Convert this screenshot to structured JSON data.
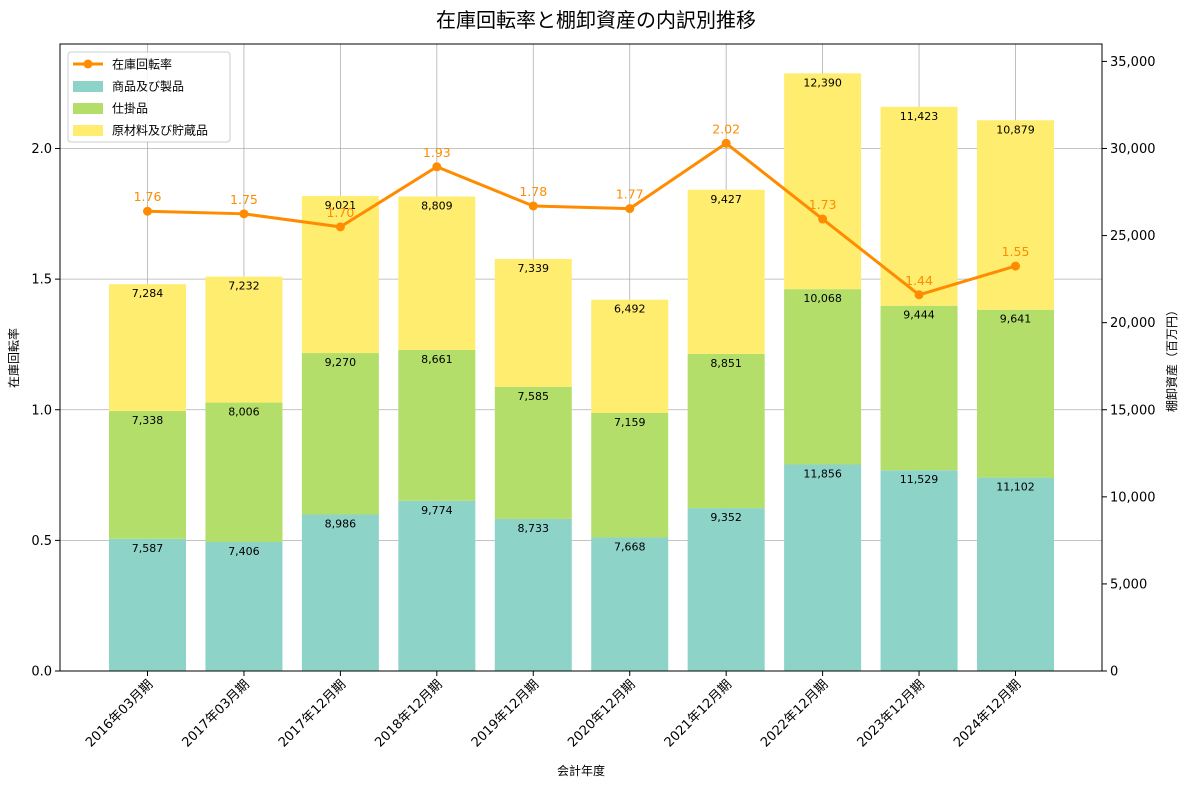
{
  "chart_data": {
    "type": "bar",
    "title": "在庫回転率と棚卸資産の内訳別推移",
    "xlabel": "会計年度",
    "ylabel_left": "在庫回転率",
    "ylabel_right": "棚卸資産（百万円）",
    "categories": [
      "2016年03月期",
      "2017年03月期",
      "2017年12月期",
      "2018年12月期",
      "2019年12月期",
      "2020年12月期",
      "2021年12月期",
      "2022年12月期",
      "2023年12月期",
      "2024年12月期"
    ],
    "series": [
      {
        "name": "商品及び製品",
        "kind": "bar",
        "axis": "right",
        "color": "#8dd3c7",
        "values": [
          7587,
          7406,
          8986,
          9774,
          8733,
          7668,
          9352,
          11856,
          11529,
          11102
        ],
        "labels": [
          "7,587",
          "7,406",
          "8,986",
          "9,774",
          "8,733",
          "7,668",
          "9,352",
          "11,856",
          "11,529",
          "11,102"
        ]
      },
      {
        "name": "仕掛品",
        "kind": "bar",
        "axis": "right",
        "color": "#b3de69",
        "values": [
          7338,
          8006,
          9270,
          8661,
          7585,
          7159,
          8851,
          10068,
          9444,
          9641
        ],
        "labels": [
          "7,338",
          "8,006",
          "9,270",
          "8,661",
          "7,585",
          "7,159",
          "8,851",
          "10,068",
          "9,444",
          "9,641"
        ]
      },
      {
        "name": "原材料及び貯蔵品",
        "kind": "bar",
        "axis": "right",
        "color": "#ffed6f",
        "values": [
          7284,
          7232,
          9021,
          8809,
          7339,
          6492,
          9427,
          12390,
          11423,
          10879
        ],
        "labels": [
          "7,284",
          "7,232",
          "9,021",
          "8,809",
          "7,339",
          "6,492",
          "9,427",
          "12,390",
          "11,423",
          "10,879"
        ]
      },
      {
        "name": "在庫回転率",
        "kind": "line",
        "axis": "left",
        "color": "#ff8c00",
        "values": [
          1.76,
          1.75,
          1.7,
          1.93,
          1.78,
          1.77,
          2.02,
          1.73,
          1.44,
          1.55
        ],
        "labels": [
          "1.76",
          "1.75",
          "1.70",
          "1.93",
          "1.78",
          "1.77",
          "2.02",
          "1.73",
          "1.44",
          "1.55"
        ]
      }
    ],
    "y_left": {
      "min": 0,
      "max": 2.4,
      "ticks": [
        0.0,
        0.5,
        1.0,
        1.5,
        2.0
      ],
      "tick_labels": [
        "0.0",
        "0.5",
        "1.0",
        "1.5",
        "2.0"
      ]
    },
    "y_right": {
      "min": 0,
      "max": 36000,
      "ticks": [
        0,
        5000,
        10000,
        15000,
        20000,
        25000,
        30000,
        35000
      ],
      "tick_labels": [
        "0",
        "5,000",
        "10,000",
        "15,000",
        "20,000",
        "25,000",
        "30,000",
        "35,000"
      ]
    },
    "grid": true,
    "legend_position": "top-left",
    "legend_order": [
      "在庫回転率",
      "商品及び製品",
      "仕掛品",
      "原材料及び貯蔵品"
    ]
  }
}
